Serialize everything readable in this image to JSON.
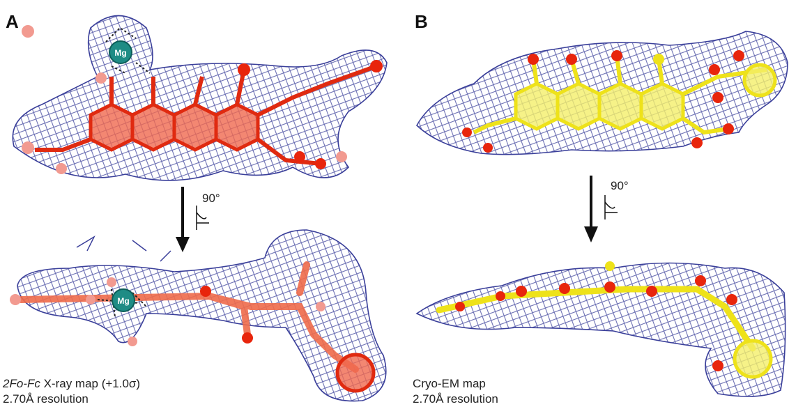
{
  "panels": [
    {
      "label": "A",
      "ion_labels": [
        "Mg",
        "Mg"
      ],
      "rotation_label": "90°",
      "caption": {
        "map_italic": "2Fo-Fc",
        "map": "X-ray map (+1.0σ)",
        "resolution": "2.70Å resolution"
      }
    },
    {
      "label": "B",
      "rotation_label": "90°",
      "caption": {
        "map": "Cryo-EM map",
        "resolution": "2.70Å resolution"
      }
    }
  ]
}
